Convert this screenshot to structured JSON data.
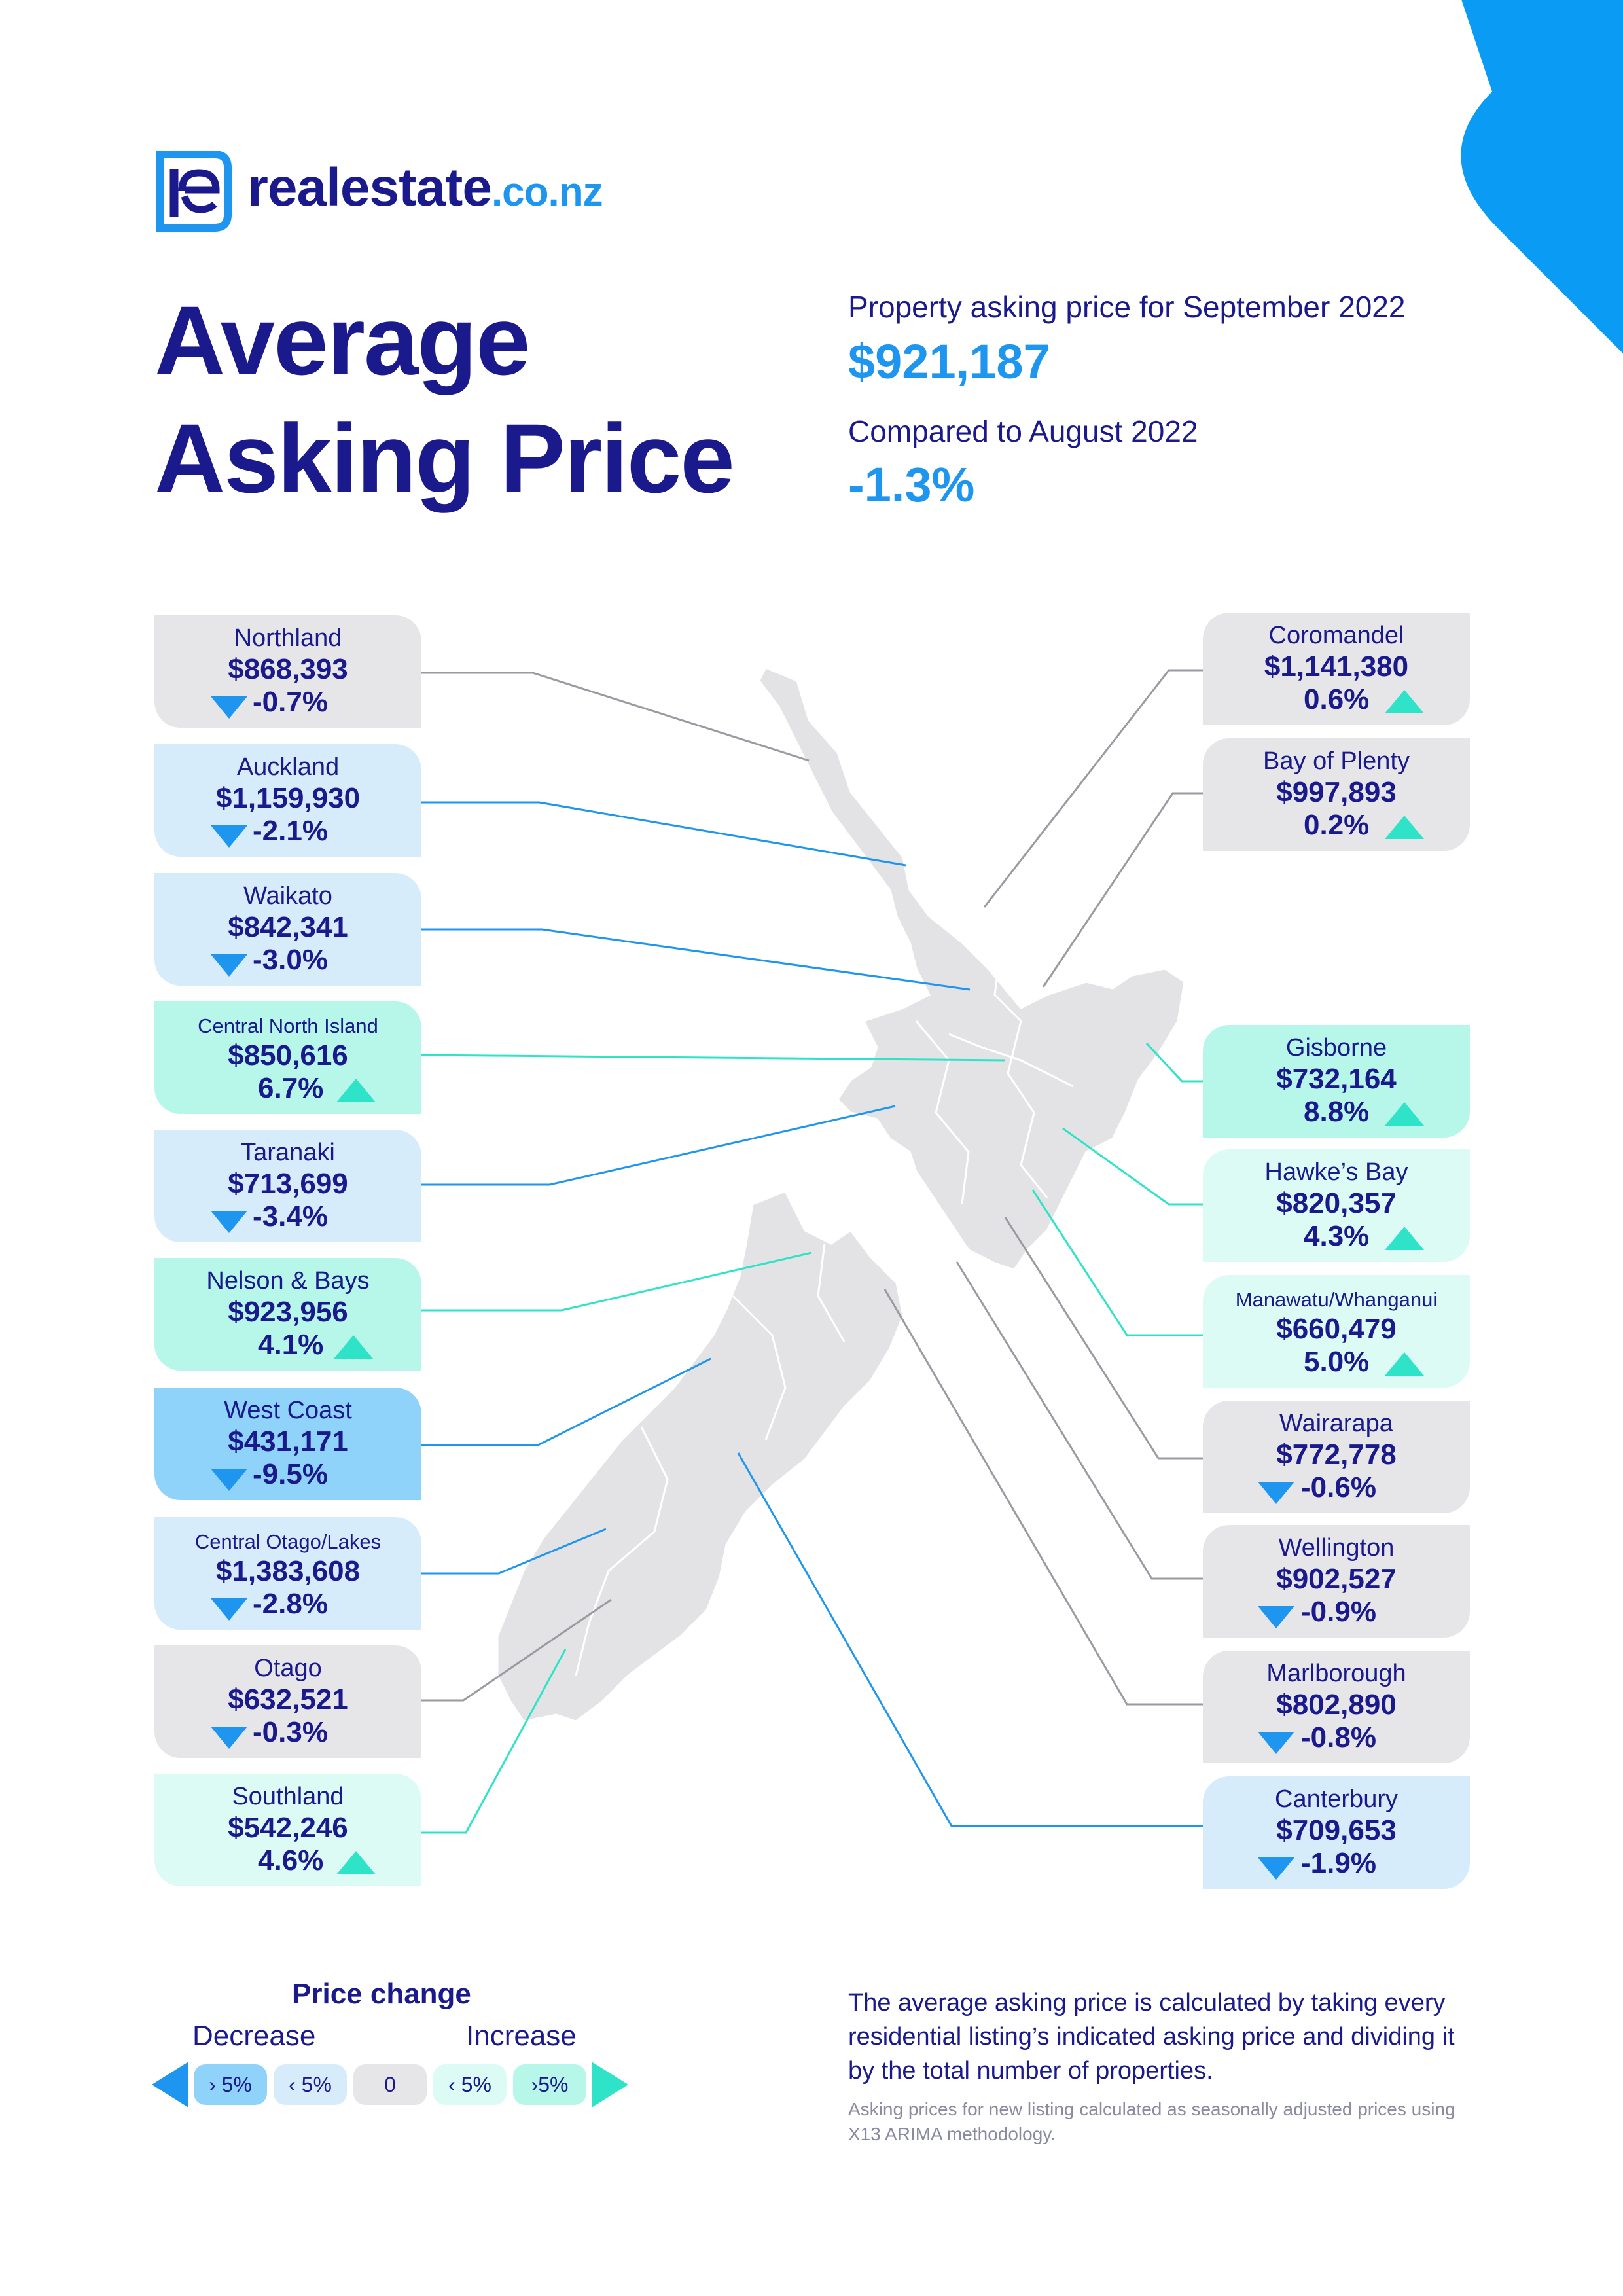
{
  "brand": {
    "name": "realestate",
    "tld": ".co.nz",
    "logo_icon": "re-logo-icon"
  },
  "title": {
    "line1": "Average",
    "line2": "Asking Price"
  },
  "summary": {
    "price_label": "Property asking price for September 2022",
    "price_value": "$921,187",
    "compare_label": "Compared to August 2022",
    "compare_value": "-1.3%"
  },
  "colors": {
    "navy": "#1b1a8c",
    "accent_blue": "#1e96f0",
    "teal": "#2fe3c8",
    "decrease_large": "#8fd3fb",
    "decrease_small": "#d6ecfb",
    "neutral": "#e6e6e8",
    "increase_small": "#dcfbf5",
    "increase_large": "#b6f7ea"
  },
  "regions_left": [
    {
      "name": "Northland",
      "price": "$868,393",
      "change": "-0.7%",
      "direction": "down"
    },
    {
      "name": "Auckland",
      "price": "$1,159,930",
      "change": "-2.1%",
      "direction": "down"
    },
    {
      "name": "Waikato",
      "price": "$842,341",
      "change": "-3.0%",
      "direction": "down"
    },
    {
      "name": "Central North Island",
      "price": "$850,616",
      "change": "6.7%",
      "direction": "up"
    },
    {
      "name": "Taranaki",
      "price": "$713,699",
      "change": "-3.4%",
      "direction": "down"
    },
    {
      "name": "Nelson & Bays",
      "price": "$923,956",
      "change": "4.1%",
      "direction": "up"
    },
    {
      "name": "West Coast",
      "price": "$431,171",
      "change": "-9.5%",
      "direction": "down"
    },
    {
      "name": "Central Otago/Lakes",
      "price": "$1,383,608",
      "change": "-2.8%",
      "direction": "down"
    },
    {
      "name": "Otago",
      "price": "$632,521",
      "change": "-0.3%",
      "direction": "down"
    },
    {
      "name": "Southland",
      "price": "$542,246",
      "change": "4.6%",
      "direction": "up"
    }
  ],
  "regions_right": [
    {
      "name": "Coromandel",
      "price": "$1,141,380",
      "change": "0.6%",
      "direction": "up"
    },
    {
      "name": "Bay of Plenty",
      "price": "$997,893",
      "change": "0.2%",
      "direction": "up"
    },
    {
      "name": "Gisborne",
      "price": "$732,164",
      "change": "8.8%",
      "direction": "up"
    },
    {
      "name": "Hawke’s Bay",
      "price": "$820,357",
      "change": "4.3%",
      "direction": "up"
    },
    {
      "name": "Manawatu/Whanganui",
      "price": "$660,479",
      "change": "5.0%",
      "direction": "up"
    },
    {
      "name": "Wairarapa",
      "price": "$772,778",
      "change": "-0.6%",
      "direction": "down"
    },
    {
      "name": "Wellington",
      "price": "$902,527",
      "change": "-0.9%",
      "direction": "down"
    },
    {
      "name": "Marlborough",
      "price": "$802,890",
      "change": "-0.8%",
      "direction": "down"
    },
    {
      "name": "Canterbury",
      "price": "$709,653",
      "change": "-1.9%",
      "direction": "down"
    }
  ],
  "legend": {
    "title": "Price change",
    "decrease": "Decrease",
    "increase": "Increase",
    "chips": [
      "› 5%",
      "‹ 5%",
      "0",
      "‹ 5%",
      "›5%"
    ]
  },
  "note": "The average asking price is calculated by taking every residential listing’s indicated asking price and dividing it by the total number of properties.",
  "fine_print": "Asking prices for new listing calculated as seasonally adjusted prices using X13 ARIMA methodology."
}
